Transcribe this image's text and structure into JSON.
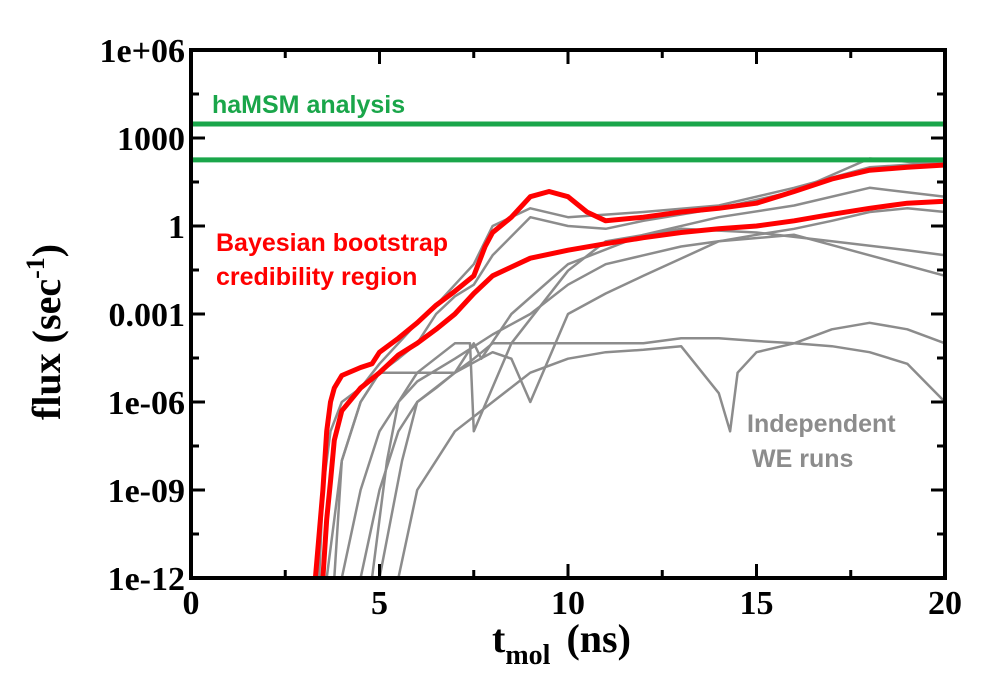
{
  "chart_data": {
    "type": "line",
    "xlabel": "t",
    "xlabel_sub": "mol",
    "xlabel_unit": "(ns)",
    "ylabel": "flux  (sec",
    "ylabel_sup": "-1",
    "ylabel_close": ")",
    "xlim": [
      0,
      20
    ],
    "ylim": [
      1e-12,
      1000000.0
    ],
    "yscale": "log",
    "x_ticks": [
      0,
      5,
      10,
      15,
      20
    ],
    "x_tick_labels": [
      "0",
      "5",
      "10",
      "15",
      "20"
    ],
    "y_ticks": [
      1e-12,
      1e-09,
      1e-06,
      0.001,
      1,
      1000,
      1000000.0
    ],
    "y_tick_labels": [
      "1e-12",
      "1e-09",
      "1e-06",
      "0.001",
      "1",
      "1000",
      "1e+06"
    ],
    "grid": false,
    "annotations": {
      "hamsm": "haMSM analysis",
      "bayes_line1": "Bayesian bootstrap",
      "bayes_line2": "credibility region",
      "we_line1": "Independent",
      "we_line2": "WE runs"
    },
    "colors": {
      "hamsm": "#1aa64a",
      "bayes": "#ff0000",
      "we": "#8c8c8c"
    },
    "hlines": [
      {
        "group": "hamsm",
        "y": 3000
      },
      {
        "group": "hamsm",
        "y": 180
      }
    ],
    "series": [
      {
        "group": "bayes",
        "x": [
          3.3,
          3.5,
          3.6,
          3.7,
          3.8,
          4.0,
          4.5,
          4.8,
          5.0,
          5.5,
          6.0,
          6.5,
          7.0,
          7.5,
          7.8,
          8.0,
          8.5,
          9.0,
          9.5,
          10.0,
          10.5,
          11.0,
          12.0,
          13.0,
          14.0,
          15.0,
          16.0,
          17.0,
          18.0,
          19.0,
          20.0
        ],
        "y": [
          1e-12,
          1e-09,
          1e-07,
          1e-06,
          3e-06,
          8e-06,
          1.5e-05,
          2e-05,
          5e-05,
          0.00015,
          0.0005,
          0.002,
          0.006,
          0.02,
          0.2,
          0.6,
          2,
          10,
          15,
          10,
          3,
          1.5,
          2,
          3,
          4,
          6,
          15,
          40,
          80,
          100,
          120
        ]
      },
      {
        "group": "bayes",
        "x": [
          3.5,
          3.6,
          3.7,
          3.8,
          4.0,
          4.5,
          5.0,
          5.5,
          6.0,
          6.5,
          7.0,
          7.5,
          8.0,
          8.5,
          9.0,
          10.0,
          11.0,
          12.0,
          13.0,
          14.0,
          15.0,
          16.0,
          17.0,
          18.0,
          19.0,
          20.0
        ],
        "y": [
          1e-12,
          1e-10,
          2e-09,
          5e-08,
          5e-07,
          3e-06,
          1e-05,
          4e-05,
          0.0001,
          0.0003,
          0.001,
          0.005,
          0.02,
          0.04,
          0.08,
          0.15,
          0.25,
          0.4,
          0.6,
          0.8,
          1,
          1.5,
          2.5,
          4,
          6,
          7
        ]
      },
      {
        "group": "we",
        "x": [
          3.4,
          3.5,
          3.7,
          4.0,
          4.5,
          5.0,
          5.5,
          6.0,
          6.5,
          7.0,
          7.5,
          8.0,
          9.0,
          10.0,
          12.0,
          14.0,
          16.0,
          18.0,
          20.0
        ],
        "y": [
          1e-12,
          1e-09,
          1e-07,
          1e-06,
          3e-06,
          2e-05,
          0.0001,
          0.0005,
          0.002,
          0.01,
          0.05,
          1,
          4,
          2,
          3,
          5,
          20,
          100,
          150
        ]
      },
      {
        "group": "we",
        "x": [
          3.6,
          3.8,
          4.0,
          4.5,
          5.0,
          5.5,
          6.0,
          6.5,
          7.0,
          7.5,
          8.0,
          9.0,
          10.0,
          11.0,
          12.0,
          14.0,
          16.0,
          18.0,
          20.0
        ],
        "y": [
          1e-12,
          1e-10,
          1e-08,
          1e-06,
          1e-05,
          3e-05,
          0.0001,
          0.001,
          0.004,
          0.01,
          0.1,
          2,
          1,
          0.8,
          1.5,
          4,
          15,
          200,
          120
        ]
      },
      {
        "group": "we",
        "x": [
          3.8,
          4.0,
          4.5,
          5.0,
          6.0,
          7.0,
          7.5,
          7.7,
          8.5,
          10.0,
          12.0,
          14.0,
          16.0,
          18.0,
          20.0
        ],
        "y": [
          1e-12,
          1e-08,
          1e-06,
          1e-05,
          1e-05,
          1e-05,
          0.0001,
          3e-05,
          0.001,
          0.05,
          0.5,
          2,
          5,
          20,
          10
        ]
      },
      {
        "group": "we",
        "x": [
          4.8,
          5.0,
          5.2,
          5.5,
          6.0,
          7.0,
          7.4,
          7.5,
          8.5,
          10.0,
          11.0,
          13.0,
          15.0,
          17.0,
          19.0,
          20.0
        ],
        "y": [
          1e-12,
          1e-10,
          1e-08,
          1e-06,
          1e-05,
          0.0001,
          0.0001,
          1e-07,
          0.0001,
          0.03,
          0.3,
          0.8,
          0.6,
          0.3,
          0.15,
          0.1
        ]
      },
      {
        "group": "we",
        "x": [
          5.0,
          5.3,
          5.6,
          6.0,
          6.5,
          7.0,
          8.0,
          8.5,
          9.0,
          10.0,
          11.0,
          12.0,
          14.0,
          16.0,
          18.0,
          20.0
        ],
        "y": [
          1e-12,
          1e-10,
          1e-08,
          1e-06,
          3e-06,
          1e-05,
          5e-05,
          3e-05,
          1e-06,
          0.001,
          0.005,
          0.02,
          0.3,
          0.5,
          0.1,
          0.02
        ]
      },
      {
        "group": "we",
        "x": [
          4.5,
          5.0,
          5.5,
          6.0,
          7.0,
          7.5,
          8.0,
          9.0,
          10.0,
          11.0,
          12.0,
          13.0,
          14.0,
          15.0,
          16.0,
          17.0,
          18.0,
          19.0,
          20.0
        ],
        "y": [
          1e-12,
          1e-09,
          1e-07,
          1e-06,
          1e-05,
          3e-05,
          0.0001,
          0.0001,
          0.0001,
          0.0001,
          0.0001,
          0.00015,
          0.00015,
          0.00012,
          0.0001,
          8e-05,
          5e-05,
          2e-05,
          1e-06
        ]
      },
      {
        "group": "we",
        "x": [
          5.5,
          6.0,
          6.5,
          7.0,
          8.0,
          9.0,
          10.0,
          11.0,
          12.0,
          13.0,
          14.0,
          14.3,
          14.5,
          15.0,
          16.0,
          17.0,
          18.0,
          19.0,
          20.0
        ],
        "y": [
          1e-12,
          1e-09,
          1e-08,
          1e-07,
          1e-06,
          1e-05,
          3e-05,
          5e-05,
          6e-05,
          8e-05,
          2e-06,
          1e-07,
          1e-05,
          5e-05,
          0.0001,
          0.0003,
          0.0005,
          0.0003,
          0.0001
        ]
      },
      {
        "group": "we",
        "x": [
          4.0,
          4.5,
          5.0,
          5.5,
          6.0,
          7.0,
          8.0,
          9.0,
          10.0,
          11.0,
          12.0,
          13.0,
          14.0,
          15.0,
          16.0,
          17.0,
          18.0,
          19.0,
          20.0
        ],
        "y": [
          1e-12,
          1e-09,
          1e-07,
          1e-06,
          5e-06,
          3e-05,
          0.0002,
          0.001,
          0.01,
          0.05,
          0.1,
          0.2,
          0.3,
          0.5,
          0.8,
          1.5,
          3,
          4,
          3
        ]
      }
    ]
  }
}
